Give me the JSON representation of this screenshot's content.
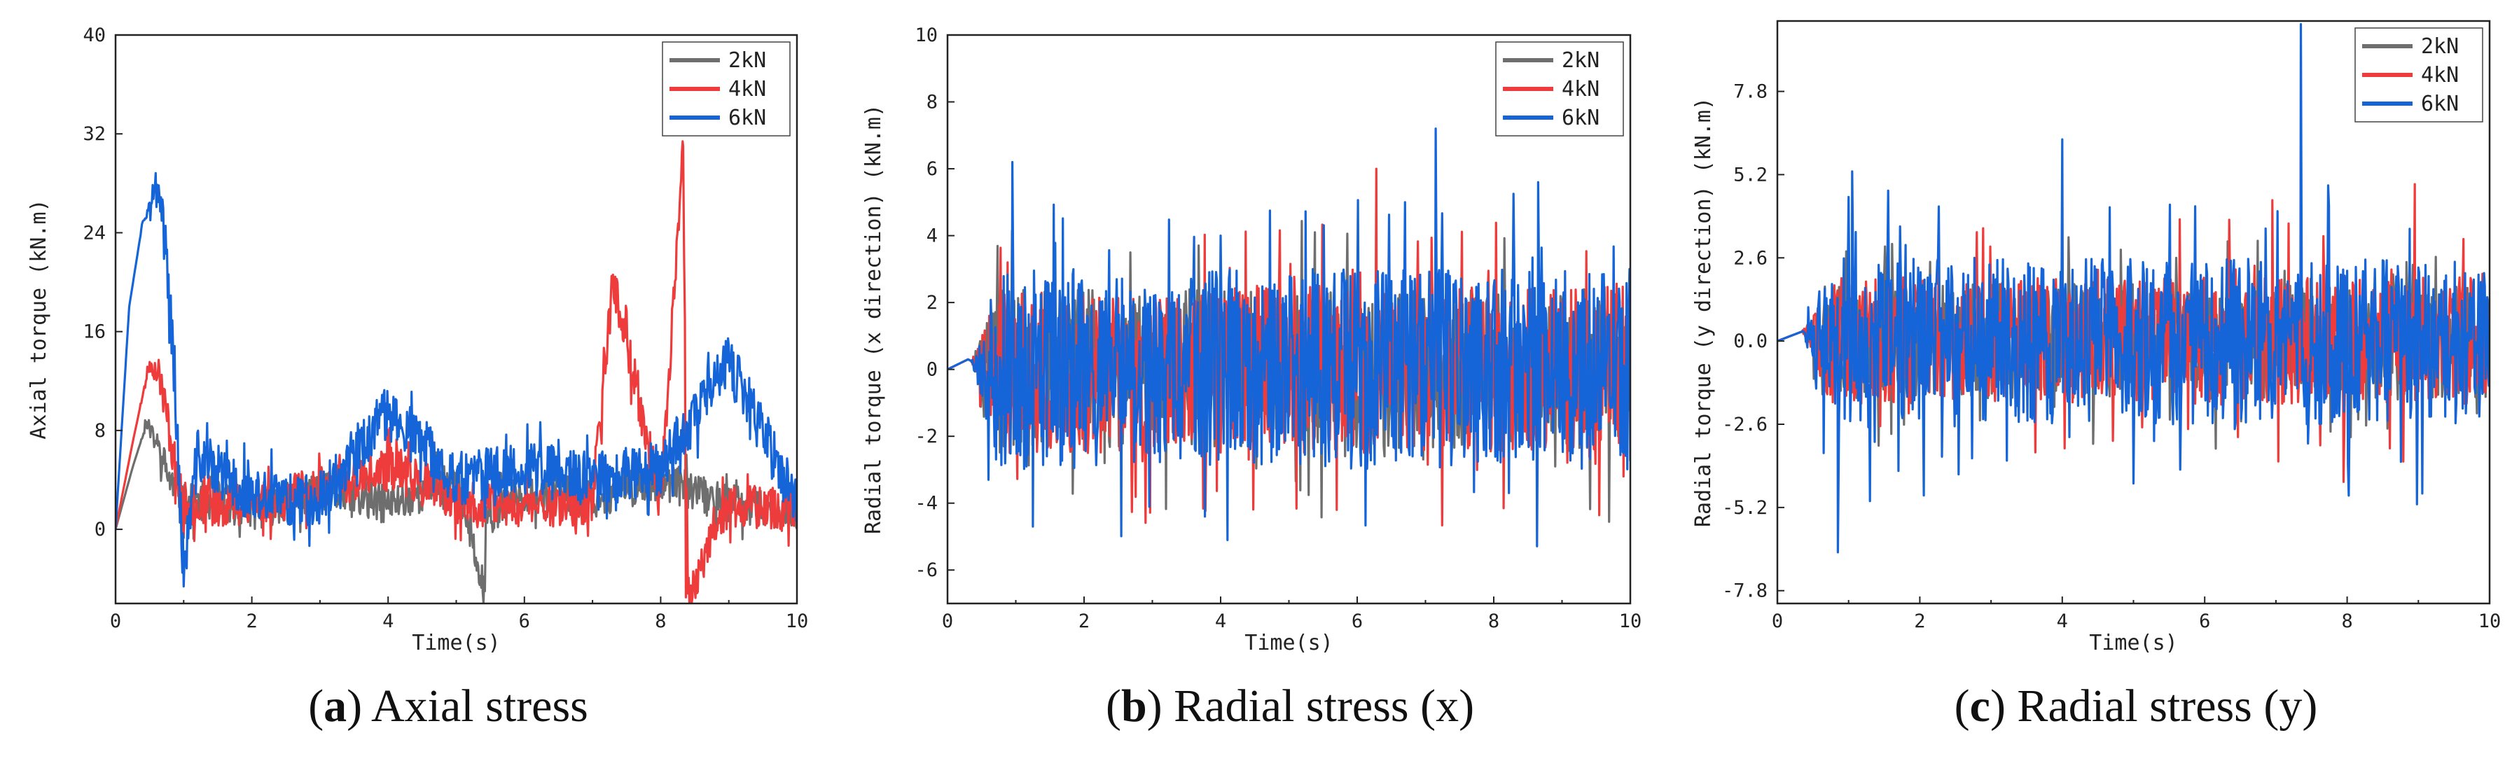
{
  "colors": {
    "2kN": "#6e6e6e",
    "4kN": "#ee3b3b",
    "6kN": "#1565d8"
  },
  "chart_data": [
    {
      "type": "line",
      "panel": "a",
      "caption_letter": "a",
      "caption_text": "Axial stress",
      "xlabel": "Time(s)",
      "ylabel": "Axial torque (kN.m)",
      "xlim": [
        0,
        10
      ],
      "ylim": [
        -6,
        40
      ],
      "xticks": [
        0,
        2,
        4,
        6,
        8,
        10
      ],
      "yticks": [
        0,
        8,
        16,
        24,
        32,
        40
      ],
      "legend_position": "top-right",
      "series": [
        {
          "name": "2kN",
          "color_key": "2kN",
          "t": [
            0,
            0.25,
            0.45,
            0.6,
            0.8,
            1.0,
            1.5,
            2.0,
            3.0,
            4.0,
            5.0,
            5.4,
            5.45,
            6.0,
            7.0,
            8.0,
            9.0,
            10.0
          ],
          "y": [
            0,
            5,
            8.5,
            7,
            4,
            2,
            2.5,
            1.5,
            3,
            2,
            4,
            -5,
            1,
            3,
            2.5,
            4,
            2,
            1.5
          ],
          "noise_amp": 1.6,
          "noise_seed": 11,
          "spikes": [
            [
              5.42,
              -5
            ]
          ]
        },
        {
          "name": "4kN",
          "color_key": "4kN",
          "t": [
            0,
            0.25,
            0.5,
            0.65,
            0.85,
            1.0,
            1.5,
            2.5,
            4.1,
            5.0,
            7.0,
            7.2,
            7.3,
            8.0,
            8.33,
            8.4,
            9.0,
            10.0
          ],
          "y": [
            0,
            7,
            13.5,
            12.5,
            6,
            2,
            2,
            2.5,
            5,
            2,
            2,
            14,
            20.5,
            2,
            31,
            -5.5,
            2,
            1.5
          ],
          "noise_amp": 1.8,
          "noise_seed": 23,
          "spikes": [
            [
              7.18,
              14
            ],
            [
              7.28,
              20.5
            ],
            [
              8.33,
              31
            ],
            [
              8.37,
              -5.5
            ]
          ]
        },
        {
          "name": "6kN",
          "color_key": "6kN",
          "t": [
            0,
            0.2,
            0.4,
            0.55,
            0.7,
            0.85,
            0.95,
            1.0,
            1.2,
            2.0,
            3.0,
            4.0,
            5.0,
            6.0,
            7.0,
            8.0,
            9.0,
            10.0
          ],
          "y": [
            0,
            18,
            25,
            27,
            26,
            14,
            2,
            -3.5,
            6,
            2.5,
            2.5,
            9.5,
            4,
            5,
            4,
            5,
            13.5,
            2
          ],
          "noise_amp": 2.2,
          "noise_seed": 37,
          "spikes": [
            [
              0.98,
              -3.5
            ],
            [
              4.03,
              9.5
            ],
            [
              8.98,
              13.5
            ]
          ]
        }
      ]
    },
    {
      "type": "line",
      "panel": "b",
      "caption_letter": "b",
      "caption_text": "Radial stress (x)",
      "xlabel": "Time(s)",
      "ylabel": "Radial torque (x direction) (kN.m)",
      "xlim": [
        0,
        10
      ],
      "ylim": [
        -7,
        10
      ],
      "xticks": [
        0,
        2,
        4,
        6,
        8,
        10
      ],
      "yticks": [
        -6,
        -4,
        -2,
        0,
        2,
        4,
        6,
        8,
        10
      ],
      "legend_position": "top-right",
      "series": [
        {
          "name": "2kN",
          "color_key": "2kN",
          "t": [
            0,
            0.3,
            0.6,
            10
          ],
          "y": [
            0,
            0.3,
            0,
            0
          ],
          "noise_amp": 2.4,
          "noise_seed": 51,
          "spikes": [
            [
              5.38,
              4.1
            ],
            [
              2.3,
              -2.8
            ],
            [
              6.4,
              -2.6
            ],
            [
              8.9,
              -2.9
            ]
          ]
        },
        {
          "name": "4kN",
          "color_key": "4kN",
          "t": [
            0,
            0.3,
            0.6,
            10
          ],
          "y": [
            0,
            0.3,
            0,
            0
          ],
          "noise_amp": 2.5,
          "noise_seed": 63,
          "spikes": [
            [
              0.88,
              3.2
            ],
            [
              5.7,
              -4.2
            ],
            [
              6.28,
              6.0
            ],
            [
              8.95,
              1.8
            ],
            [
              9.9,
              -3.2
            ]
          ]
        },
        {
          "name": "6kN",
          "color_key": "6kN",
          "t": [
            0,
            0.3,
            0.6,
            10
          ],
          "y": [
            0,
            0.3,
            0,
            0
          ],
          "noise_amp": 3.0,
          "noise_seed": 79,
          "spikes": [
            [
              0.6,
              -3.3
            ],
            [
              0.95,
              6.2
            ],
            [
              1.25,
              -4.7
            ],
            [
              3.77,
              -4.4
            ],
            [
              4.0,
              4.0
            ],
            [
              5.35,
              3.0
            ],
            [
              6.7,
              5.0
            ],
            [
              7.15,
              7.2
            ],
            [
              8.65,
              5.6
            ],
            [
              9.9,
              -2.5
            ]
          ]
        }
      ]
    },
    {
      "type": "line",
      "panel": "c",
      "caption_letter": "c",
      "caption_text": "Radial stress (y)",
      "xlabel": "Time(s)",
      "ylabel": "Radial torque (y direction) (kN.m)",
      "xlim": [
        0,
        10
      ],
      "ylim": [
        -8.2,
        10
      ],
      "xticks": [
        0,
        2,
        4,
        6,
        8,
        10
      ],
      "yticks": [
        -7.8,
        -5.2,
        -2.6,
        0.0,
        2.6,
        5.2,
        7.8
      ],
      "legend_position": "top-right",
      "series": [
        {
          "name": "2kN",
          "color_key": "2kN",
          "t": [
            0,
            0.35,
            0.7,
            10
          ],
          "y": [
            0,
            0.3,
            0,
            0
          ],
          "noise_amp": 1.8,
          "noise_seed": 91,
          "spikes": [
            [
              1.6,
              -2.9
            ],
            [
              5.6,
              2.6
            ],
            [
              8.05,
              -3.0
            ]
          ]
        },
        {
          "name": "4kN",
          "color_key": "4kN",
          "t": [
            0,
            0.35,
            0.7,
            10
          ],
          "y": [
            0,
            0.3,
            0,
            0
          ],
          "noise_amp": 2.0,
          "noise_seed": 103,
          "spikes": [
            [
              2.8,
              3.4
            ],
            [
              5.65,
              3.8
            ],
            [
              6.95,
              4.4
            ],
            [
              7.95,
              -4.4
            ],
            [
              8.95,
              4.9
            ],
            [
              9.9,
              2.1
            ]
          ]
        },
        {
          "name": "6kN",
          "color_key": "6kN",
          "t": [
            0,
            0.35,
            0.7,
            10
          ],
          "y": [
            0,
            0.3,
            0,
            0
          ],
          "noise_amp": 2.6,
          "noise_seed": 127,
          "spikes": [
            [
              0.65,
              -3.5
            ],
            [
              0.85,
              -6.6
            ],
            [
              1.0,
              4.5
            ],
            [
              1.05,
              5.3
            ],
            [
              1.3,
              -5.0
            ],
            [
              1.8,
              3.0
            ],
            [
              4.0,
              6.3
            ],
            [
              4.1,
              -3.0
            ],
            [
              7.35,
              9.9
            ],
            [
              7.45,
              -3.2
            ],
            [
              8.98,
              -5.1
            ]
          ]
        }
      ]
    }
  ]
}
